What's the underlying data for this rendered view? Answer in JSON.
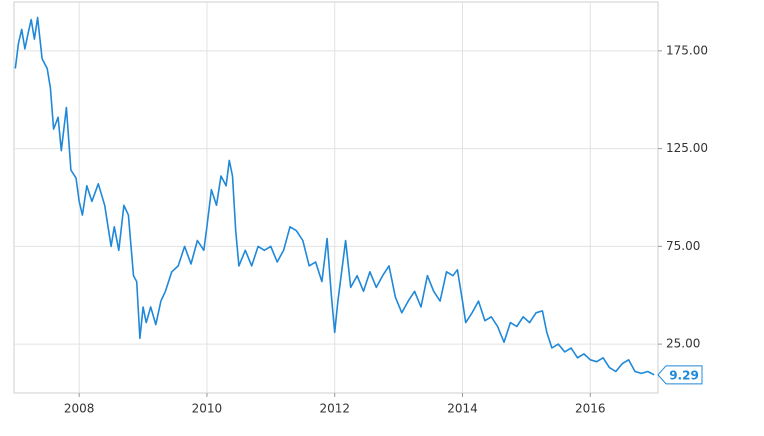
{
  "chart_data": {
    "type": "line",
    "x": [
      2007.0,
      2007.05,
      2007.1,
      2007.15,
      2007.2,
      2007.25,
      2007.3,
      2007.35,
      2007.42,
      2007.5,
      2007.55,
      2007.6,
      2007.67,
      2007.72,
      2007.8,
      2007.87,
      2007.95,
      2008.0,
      2008.05,
      2008.12,
      2008.2,
      2008.3,
      2008.4,
      2008.5,
      2008.55,
      2008.62,
      2008.7,
      2008.77,
      2008.85,
      2008.9,
      2008.95,
      2009.0,
      2009.05,
      2009.12,
      2009.2,
      2009.28,
      2009.35,
      2009.45,
      2009.55,
      2009.65,
      2009.75,
      2009.85,
      2009.95,
      2010.0,
      2010.07,
      2010.15,
      2010.22,
      2010.3,
      2010.35,
      2010.4,
      2010.45,
      2010.5,
      2010.6,
      2010.7,
      2010.8,
      2010.9,
      2011.0,
      2011.1,
      2011.2,
      2011.3,
      2011.4,
      2011.5,
      2011.6,
      2011.7,
      2011.8,
      2011.88,
      2011.95,
      2012.0,
      2012.05,
      2012.12,
      2012.17,
      2012.25,
      2012.35,
      2012.45,
      2012.55,
      2012.65,
      2012.75,
      2012.85,
      2012.95,
      2013.05,
      2013.15,
      2013.25,
      2013.35,
      2013.45,
      2013.55,
      2013.65,
      2013.75,
      2013.85,
      2013.92,
      2014.0,
      2014.05,
      2014.15,
      2014.25,
      2014.35,
      2014.45,
      2014.55,
      2014.65,
      2014.75,
      2014.85,
      2014.95,
      2015.05,
      2015.15,
      2015.25,
      2015.32,
      2015.4,
      2015.5,
      2015.6,
      2015.7,
      2015.8,
      2015.9,
      2016.0,
      2016.1,
      2016.2,
      2016.3,
      2016.4,
      2016.5,
      2016.6,
      2016.7,
      2016.8,
      2016.9,
      2017.0
    ],
    "series": [
      {
        "color": "#1f88d9",
        "values": [
          166,
          179,
          186,
          176,
          184,
          191,
          181,
          192,
          171,
          166,
          156,
          135,
          141,
          124,
          146,
          114,
          110,
          98,
          91,
          106,
          98,
          107,
          96,
          75,
          85,
          73,
          96,
          91,
          60,
          57,
          28,
          44,
          36,
          44,
          35,
          47,
          52,
          62,
          65,
          75,
          66,
          78,
          73,
          85,
          104,
          96,
          111,
          106,
          119,
          111,
          83,
          65,
          73,
          65,
          75,
          73,
          75,
          67,
          73,
          85,
          83,
          78,
          65,
          67,
          57,
          79,
          49,
          31,
          47,
          65,
          78,
          54,
          60,
          52,
          62,
          54,
          60,
          65,
          49,
          41,
          47,
          52,
          44,
          60,
          52,
          47,
          62,
          60,
          63,
          47,
          36,
          41,
          47,
          37,
          39,
          34,
          26,
          36,
          34,
          39,
          36,
          41,
          42,
          31,
          23,
          25,
          21,
          23,
          18,
          20,
          17,
          16,
          18,
          13,
          11,
          15,
          17,
          11,
          10,
          11,
          9.29
        ]
      }
    ],
    "last_value": 9.29,
    "xlim": [
      2006.98,
      2017.06
    ],
    "xticks": [
      2008,
      2010,
      2012,
      2014,
      2016
    ],
    "ylim": [
      0,
      200
    ],
    "yticks": [
      {
        "value": 25,
        "label": "25.00"
      },
      {
        "value": 75,
        "label": "75.00"
      },
      {
        "value": 125,
        "label": "125.00"
      },
      {
        "value": 175,
        "label": "175.00"
      }
    ],
    "grid": true
  }
}
